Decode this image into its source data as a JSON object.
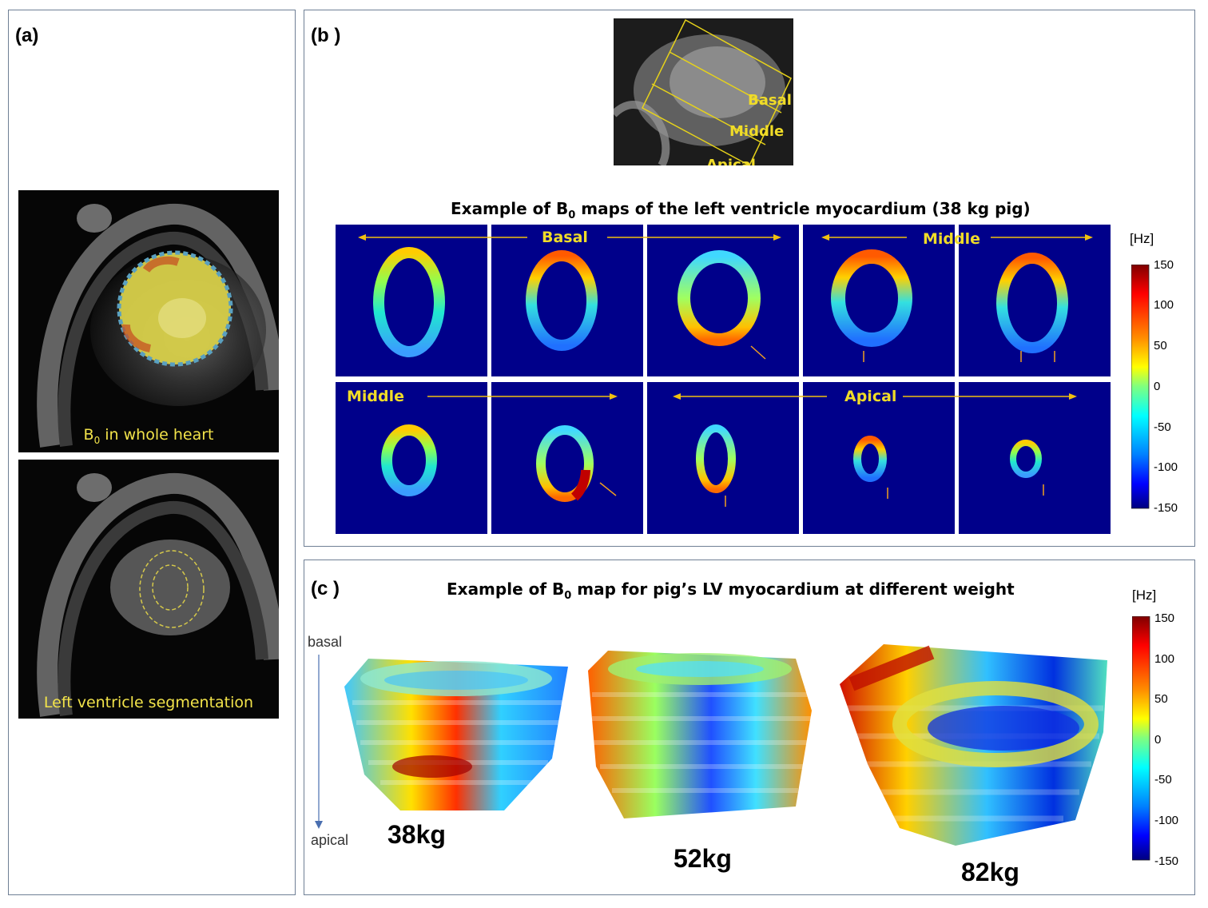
{
  "panel_a": {
    "label": "(a)",
    "caption_top_main": "B",
    "caption_top_sub": "0",
    "caption_top_rest": " in whole heart",
    "caption_bottom": "Left ventricle segmentation"
  },
  "panel_b": {
    "label": "(b )",
    "scout_labels": [
      "Basal",
      "Middle",
      "Apical"
    ],
    "title_pre": "Example of B",
    "title_sub": "0",
    "title_post": " maps of the left ventricle myocardium (38 kg pig)",
    "row1_labels": [
      "Basal",
      "Middle"
    ],
    "row2_labels": [
      "Middle",
      "Apical"
    ],
    "colorbar": {
      "unit": "[Hz]",
      "ticks": [
        "150",
        "100",
        "50",
        "0",
        "-50",
        "-100",
        "-150"
      ]
    }
  },
  "panel_c": {
    "label": "(c )",
    "title_pre": "Example of B",
    "title_sub": "0",
    "title_post": " map for pig’s LV myocardium  at different weight",
    "axis_top": "basal",
    "axis_bottom": "apical",
    "weights": [
      "38kg",
      "52kg",
      "82kg"
    ],
    "colorbar": {
      "unit": "[Hz]",
      "ticks": [
        "150",
        "100",
        "50",
        "0",
        "-50",
        "-100",
        "-150"
      ]
    }
  }
}
